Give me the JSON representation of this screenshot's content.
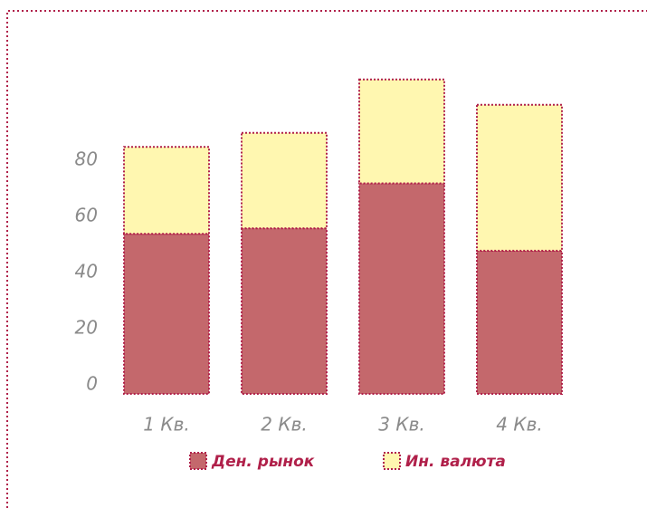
{
  "chart_data": {
    "type": "stacked_bar",
    "categories": [
      "1 Кв.",
      "2 Кв.",
      "3 Кв.",
      "4 Кв."
    ],
    "series": [
      {
        "name": "Ден. рынок",
        "color": "#c4686c",
        "values": [
          57,
          59,
          75,
          51
        ]
      },
      {
        "name": "Ин. валюта",
        "color": "#fff7b0",
        "values": [
          31,
          34,
          37,
          52
        ]
      }
    ],
    "ylim": [
      0,
      120
    ],
    "yticks": [
      0,
      20,
      40,
      60,
      80
    ],
    "grid": false
  }
}
